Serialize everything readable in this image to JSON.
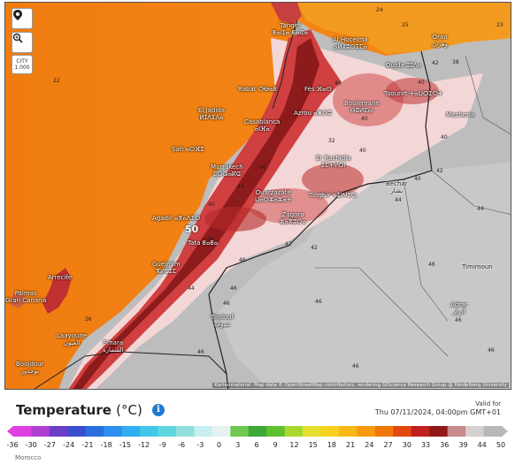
{
  "controls": {
    "locate_icon": "map-pin-icon",
    "zoom_icon": "magnifier-zoom-icon",
    "city_label": "CITY",
    "city_sub": "1.000"
  },
  "places": [
    {
      "id": "tanger",
      "name": "Tanger",
      "sub": "ⵟⴰⵏⵊⴰ ⵟⴰⵏⵊⴰ"
    },
    {
      "id": "oran",
      "name": "Oran",
      "sub": "وهران"
    },
    {
      "id": "alhoceima",
      "name": "Al Hoceima",
      "sub": "ⴰⵍⵃⵓⵙⵉⵎⴰ"
    },
    {
      "id": "oujda",
      "name": "Oujda ⵓⵊⴷⴰ",
      "sub": ""
    },
    {
      "id": "rabat",
      "name": "Rabat ⵔⴱⴰⵟ",
      "sub": ""
    },
    {
      "id": "fes",
      "name": "Fès ⴼⴰⵙ",
      "sub": ""
    },
    {
      "id": "taourirt",
      "name": "Taourirt ⵜⴰⵡⵔⵉⵔⵜ",
      "sub": ""
    },
    {
      "id": "eljadida",
      "name": "El Jadida",
      "sub": "ⵍⵊⴷⵉⴷⴰ"
    },
    {
      "id": "casablanca",
      "name": "Casablanca",
      "sub": "ⴰⵏⴼⴰ"
    },
    {
      "id": "azrou",
      "name": "Azrou ⴰⵥⵔⵓ",
      "sub": ""
    },
    {
      "id": "boulemane",
      "name": "Boulemane",
      "sub": "ⴱⵓⵍⵎⴰⵏ"
    },
    {
      "id": "mecheria",
      "name": "Mecheria",
      "sub": ""
    },
    {
      "id": "safi",
      "name": "Safi ⴰⵙⴼⵉ",
      "sub": ""
    },
    {
      "id": "errachidia",
      "name": "Er Rachidia",
      "sub": "ⵉⵎⵜⵖⵔⵏ"
    },
    {
      "id": "marrakech",
      "name": "Marrakech",
      "sub": "ⵎⵕⵕⴰⴽⵛ"
    },
    {
      "id": "bechar",
      "name": "Béchar",
      "sub": "بشار"
    },
    {
      "id": "ouarzazate",
      "name": "Ouarzazate",
      "sub": "ⵡⴰⵔⵣⴰⵣⴰⵜ"
    },
    {
      "id": "tinghir",
      "name": "Tinghir ⵜⵉⵏⵖⵉⵔ",
      "sub": ""
    },
    {
      "id": "agadir",
      "name": "Agadir ⴰⴳⴰⴷⵉⵔ",
      "sub": ""
    },
    {
      "id": "zagora",
      "name": "Zagora",
      "sub": "ⵣⴰⴳⵓⵔⴰ"
    },
    {
      "id": "tata",
      "name": "Tata ⵟⴰⵟⴰ",
      "sub": ""
    },
    {
      "id": "timimoun",
      "name": "Timimoun",
      "sub": ""
    },
    {
      "id": "guelmim",
      "name": "Guelmim",
      "sub": "ⴳⵍⵎⵉⵎ"
    },
    {
      "id": "arrecife",
      "name": "Arrecife",
      "sub": ""
    },
    {
      "id": "palmas",
      "name": "Palmas",
      "sub": "Gran Canaria"
    },
    {
      "id": "tindouf",
      "name": "Tindouf",
      "sub": "تندوف"
    },
    {
      "id": "adrar",
      "name": "Adrar",
      "sub": "أدرار"
    },
    {
      "id": "laayoune",
      "name": "Laayoune",
      "sub": "العيون"
    },
    {
      "id": "smara",
      "name": "Smara",
      "sub": "السمارة"
    },
    {
      "id": "boujdour",
      "name": "Boujdour",
      "sub": "بوجدور"
    }
  ],
  "temp_labels": {
    "t1": "24",
    "t2": "25",
    "t3": "23",
    "t4": "22",
    "t5": "38",
    "t6": "40",
    "t7": "40",
    "t8": "40",
    "t9": "40",
    "t10": "40",
    "t11": "32",
    "t12": "42",
    "t13": "46",
    "t14": "44",
    "t15": "44",
    "t16": "44",
    "t17": "42",
    "t18": "40",
    "t19": "50",
    "t20": "42",
    "t21": "42",
    "t22": "46",
    "t23": "46",
    "t24": "44",
    "t25": "46",
    "t26": "46",
    "t27": "46",
    "t28": "46",
    "t29": "46",
    "t30": "46",
    "t31": "26",
    "t32": "46",
    "t33": "40",
    "t34": "42"
  },
  "attribution": "Kartenmaterial: Map data © OpenStreetMap contributors, rendering GIScience Research Group @ Heidelberg University",
  "legend": {
    "title": "Temperature",
    "unit": "(°C)",
    "info_icon": "info-icon",
    "valid_line1": "Valid for",
    "valid_line2": "Thu 07/11/2024, 04:00pm GMT+01",
    "ticks": [
      "-36",
      "-30",
      "-27",
      "-24",
      "-21",
      "-18",
      "-15",
      "-12",
      "-9",
      "-6",
      "-3",
      "0",
      "3",
      "6",
      "9",
      "12",
      "15",
      "18",
      "21",
      "24",
      "27",
      "30",
      "33",
      "36",
      "39",
      "44",
      "50"
    ],
    "colors": [
      "#e040e0",
      "#b040d0",
      "#6a3ec8",
      "#3a4fd0",
      "#2a6fe0",
      "#2d8ff0",
      "#30aef0",
      "#40c8e8",
      "#60d6e0",
      "#90e0e0",
      "#c8eef0",
      "#e6f2f2",
      "#70c850",
      "#3ea838",
      "#60c030",
      "#a8d830",
      "#e8e030",
      "#f8d020",
      "#f8b818",
      "#f89a10",
      "#f07808",
      "#e04810",
      "#c02020",
      "#901818",
      "#c88a8a",
      "#d8d0d0",
      "#b8b8b8"
    ]
  },
  "country": "Morocco"
}
